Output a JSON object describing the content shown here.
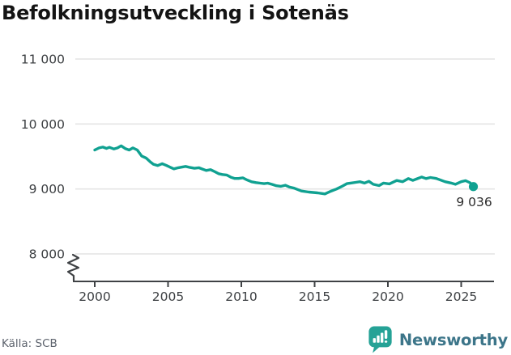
{
  "title": "Befolkningsutveckling i Sotenäs",
  "source": "Källa: SCB",
  "brand": {
    "name": "Newsworthy"
  },
  "colors": {
    "line": "#10a191",
    "marker": "#10a191",
    "grid": "#e4e4e4",
    "axis": "#3f4245",
    "tick_label": "#3d4043",
    "title": "#141414",
    "end_label": "#2b2b2b",
    "source_text": "#5d636d",
    "brand_icon": "#25a296",
    "brand_text": "#3c7589",
    "background": "#ffffff"
  },
  "chart_data": {
    "type": "line",
    "title": "Befolkningsutveckling i Sotenäs",
    "xlabel": "",
    "ylabel": "",
    "legend": "none",
    "grid": "horizontal",
    "y_axis_break": true,
    "xlim": [
      1998.5,
      2027.3
    ],
    "ylim": [
      8000,
      11000
    ],
    "x_ticks": [
      {
        "value": 2000,
        "label": "2000"
      },
      {
        "value": 2005,
        "label": "2005"
      },
      {
        "value": 2010,
        "label": "2010"
      },
      {
        "value": 2015,
        "label": "2015"
      },
      {
        "value": 2020,
        "label": "2020"
      },
      {
        "value": 2025,
        "label": "2025"
      }
    ],
    "y_ticks": [
      {
        "value": 8000,
        "label": "8 000"
      },
      {
        "value": 9000,
        "label": "9 000"
      },
      {
        "value": 10000,
        "label": "10 000"
      },
      {
        "value": 11000,
        "label": "11 000"
      }
    ],
    "end_label": {
      "text": "9 036",
      "value": 9036,
      "year": 2025.83
    },
    "series": [
      {
        "name": "Befolkning i Sotenäs",
        "color": "#10a191",
        "points": [
          [
            2000.0,
            9600
          ],
          [
            2000.3,
            9632
          ],
          [
            2000.55,
            9645
          ],
          [
            2000.8,
            9624
          ],
          [
            2001.0,
            9641
          ],
          [
            2001.3,
            9616
          ],
          [
            2001.55,
            9632
          ],
          [
            2001.8,
            9664
          ],
          [
            2002.1,
            9620
          ],
          [
            2002.35,
            9600
          ],
          [
            2002.6,
            9632
          ],
          [
            2002.9,
            9600
          ],
          [
            2003.2,
            9508
          ],
          [
            2003.5,
            9476
          ],
          [
            2003.8,
            9414
          ],
          [
            2004.0,
            9380
          ],
          [
            2004.3,
            9360
          ],
          [
            2004.6,
            9389
          ],
          [
            2004.9,
            9360
          ],
          [
            2005.1,
            9340
          ],
          [
            2005.4,
            9310
          ],
          [
            2005.7,
            9327
          ],
          [
            2006.0,
            9340
          ],
          [
            2006.2,
            9347
          ],
          [
            2006.5,
            9331
          ],
          [
            2006.8,
            9318
          ],
          [
            2007.1,
            9327
          ],
          [
            2007.35,
            9306
          ],
          [
            2007.6,
            9285
          ],
          [
            2007.9,
            9297
          ],
          [
            2008.2,
            9265
          ],
          [
            2008.45,
            9235
          ],
          [
            2008.7,
            9223
          ],
          [
            2009.0,
            9215
          ],
          [
            2009.3,
            9179
          ],
          [
            2009.55,
            9162
          ],
          [
            2009.8,
            9162
          ],
          [
            2010.1,
            9171
          ],
          [
            2010.4,
            9138
          ],
          [
            2010.7,
            9110
          ],
          [
            2011.0,
            9098
          ],
          [
            2011.3,
            9089
          ],
          [
            2011.55,
            9082
          ],
          [
            2011.8,
            9089
          ],
          [
            2012.1,
            9070
          ],
          [
            2012.4,
            9049
          ],
          [
            2012.7,
            9041
          ],
          [
            2013.0,
            9057
          ],
          [
            2013.3,
            9028
          ],
          [
            2013.6,
            9012
          ],
          [
            2014.1,
            8968
          ],
          [
            2014.6,
            8952
          ],
          [
            2015.2,
            8940
          ],
          [
            2015.7,
            8924
          ],
          [
            2016.1,
            8965
          ],
          [
            2016.5,
            9000
          ],
          [
            2016.9,
            9045
          ],
          [
            2017.2,
            9082
          ],
          [
            2017.5,
            9092
          ],
          [
            2017.8,
            9102
          ],
          [
            2018.1,
            9112
          ],
          [
            2018.4,
            9090
          ],
          [
            2018.7,
            9118
          ],
          [
            2019.0,
            9072
          ],
          [
            2019.4,
            9052
          ],
          [
            2019.7,
            9090
          ],
          [
            2020.1,
            9078
          ],
          [
            2020.6,
            9130
          ],
          [
            2021.0,
            9112
          ],
          [
            2021.4,
            9160
          ],
          [
            2021.7,
            9132
          ],
          [
            2022.0,
            9158
          ],
          [
            2022.3,
            9184
          ],
          [
            2022.6,
            9160
          ],
          [
            2022.9,
            9176
          ],
          [
            2023.3,
            9162
          ],
          [
            2023.9,
            9112
          ],
          [
            2024.3,
            9092
          ],
          [
            2024.6,
            9072
          ],
          [
            2025.0,
            9112
          ],
          [
            2025.3,
            9128
          ],
          [
            2025.6,
            9096
          ],
          [
            2025.83,
            9036
          ]
        ]
      }
    ]
  }
}
